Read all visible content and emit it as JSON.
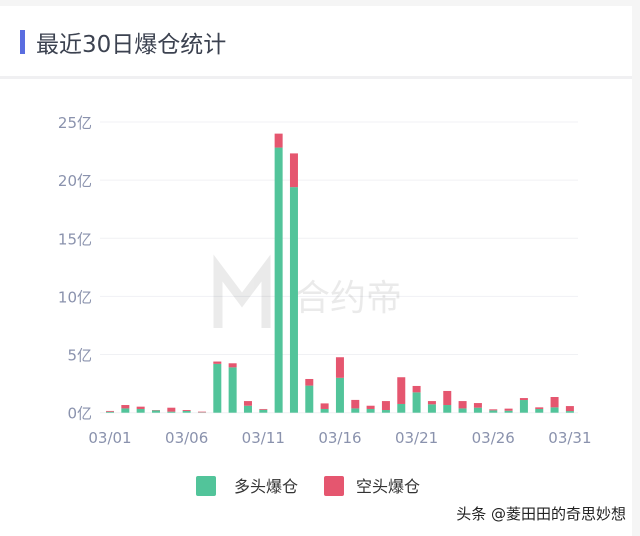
{
  "header": {
    "title": "最近30日爆仓统计"
  },
  "watermark": "合约帝",
  "footer": "头条 @菱田田的奇思妙想",
  "colors": {
    "long": "#52c49a",
    "short": "#e5566f",
    "accent": "#5a6de0"
  },
  "chart_data": {
    "type": "bar",
    "stacked": true,
    "title": "",
    "xlabel": "",
    "ylabel": "",
    "ylim": [
      0,
      25
    ],
    "yticks": [
      "0亿",
      "5亿",
      "10亿",
      "15亿",
      "20亿",
      "25亿"
    ],
    "xticks": [
      "03/01",
      "03/06",
      "03/11",
      "03/16",
      "03/21",
      "03/26",
      "03/31"
    ],
    "grid": true,
    "legend": "bottom",
    "categories": [
      "03/01",
      "03/02",
      "03/03",
      "03/04",
      "03/05",
      "03/06",
      "03/07",
      "03/08",
      "03/09",
      "03/10",
      "03/11",
      "03/12",
      "03/13",
      "03/14",
      "03/15",
      "03/16",
      "03/17",
      "03/18",
      "03/19",
      "03/20",
      "03/21",
      "03/22",
      "03/23",
      "03/24",
      "03/25",
      "03/26",
      "03/27",
      "03/28",
      "03/29",
      "03/30",
      "03/31"
    ],
    "series": [
      {
        "name": "多头爆仓",
        "values": [
          0.08,
          0.37,
          0.32,
          0.2,
          0.09,
          0.15,
          0.03,
          4.2,
          3.9,
          0.6,
          0.25,
          22.8,
          19.4,
          2.33,
          0.32,
          3.0,
          0.37,
          0.32,
          0.23,
          0.75,
          1.75,
          0.72,
          0.66,
          0.37,
          0.43,
          0.2,
          0.17,
          1.09,
          0.32,
          0.46,
          0.14
        ]
      },
      {
        "name": "空头爆仓",
        "values": [
          0.07,
          0.29,
          0.2,
          0.03,
          0.34,
          0.08,
          0.06,
          0.2,
          0.35,
          0.4,
          0.07,
          1.2,
          2.9,
          0.57,
          0.48,
          1.77,
          0.73,
          0.28,
          0.77,
          2.3,
          0.55,
          0.28,
          1.21,
          0.63,
          0.4,
          0.09,
          0.18,
          0.17,
          0.14,
          0.89,
          0.43
        ]
      }
    ]
  }
}
